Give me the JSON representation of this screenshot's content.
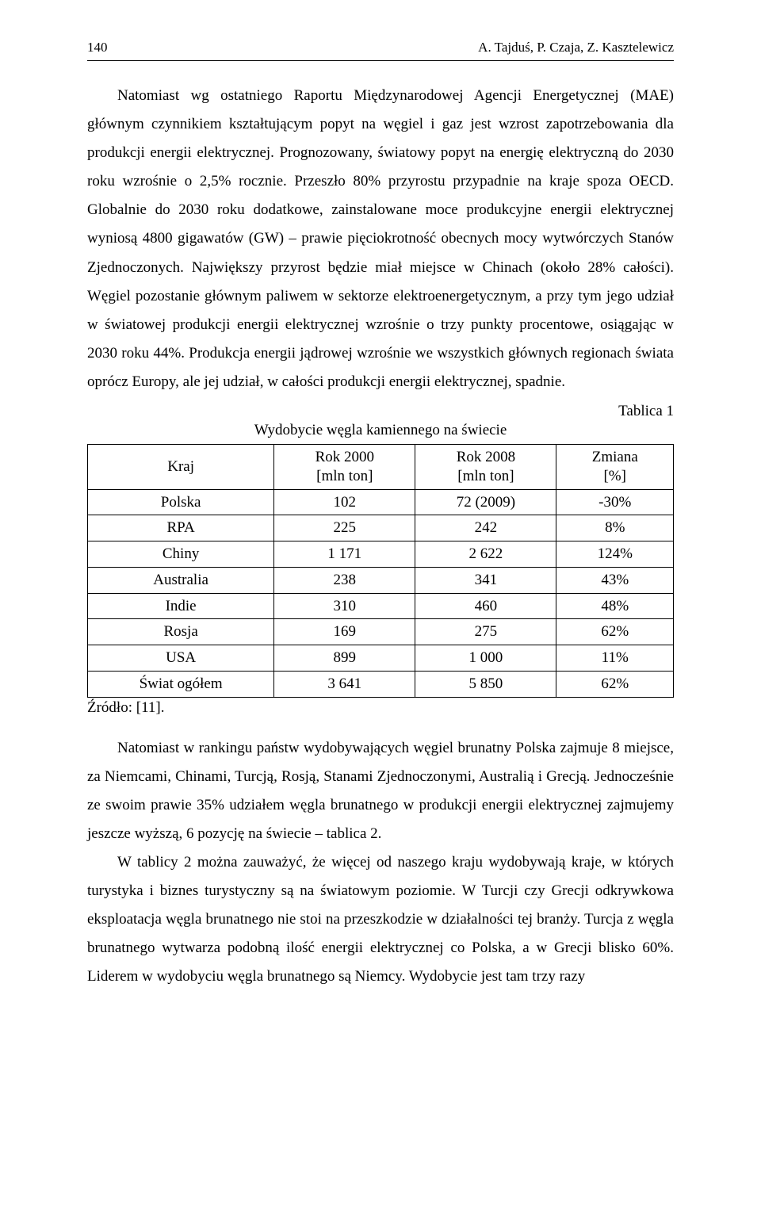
{
  "header": {
    "page_number": "140",
    "authors": "A. Tajduś, P. Czaja, Z. Kasztelewicz"
  },
  "paragraphs": {
    "p1": "Natomiast wg ostatniego Raportu Międzynarodowej Agencji Energetycznej (MAE) głównym czynnikiem kształtującym popyt na węgiel i gaz jest wzrost zapotrzebowania dla produkcji energii elektrycznej. Prognozowany, światowy popyt na energię elektryczną do 2030 roku wzrośnie o 2,5% rocznie. Przeszło 80% przyrostu przypadnie na kraje spoza OECD. Globalnie do 2030 roku dodatkowe, zainstalowane moce produkcyjne energii elektrycznej wyniosą 4800 gigawatów (GW) – prawie pięciokrotność obecnych mocy wytwórczych Stanów Zjednoczonych. Największy przyrost będzie miał miejsce w Chinach (około 28% całości). Węgiel pozostanie głównym paliwem w sektorze elektroenergetycznym, a przy tym jego udział w światowej produkcji energii elektrycznej wzrośnie o trzy punkty procentowe, osiągając w 2030 roku 44%. Produkcja energii jądrowej wzrośnie we wszystkich głównych regionach świata oprócz Europy, ale jej udział, w całości produkcji energii elektrycznej, spadnie.",
    "p2": "Natomiast w rankingu państw wydobywających węgiel brunatny Polska zajmuje 8 miejsce, za Niemcami, Chinami, Turcją, Rosją, Stanami Zjednoczonymi, Australią i Grecją. Jednocześnie ze swoim prawie 35% udziałem węgla brunatnego w produkcji energii elektrycznej zajmujemy jeszcze wyższą, 6 pozycję na świecie – tablica 2.",
    "p3": "W tablicy 2 można zauważyć, że więcej od naszego kraju wydobywają kraje, w których turystyka i biznes turystyczny są na światowym poziomie. W Turcji czy Grecji odkrywkowa eksploatacja węgla brunatnego nie stoi na przeszkodzie w działalności tej branży. Turcja z węgla brunatnego wytwarza podobną ilość energii elektrycznej co Polska, a w Grecji blisko 60%. Liderem w wydobyciu węgla brunatnego są Niemcy. Wydobycie jest tam trzy razy"
  },
  "table1": {
    "label": "Tablica 1",
    "title": "Wydobycie węgla kamiennego na świecie",
    "columns": {
      "c0": "Kraj",
      "c1_line1": "Rok 2000",
      "c1_line2": "[mln ton]",
      "c2_line1": "Rok 2008",
      "c2_line2": "[mln ton]",
      "c3_line1": "Zmiana",
      "c3_line2": "[%]"
    },
    "rows": [
      {
        "country": "Polska",
        "y2000": "102",
        "y2008": "72 (2009)",
        "change": "-30%"
      },
      {
        "country": "RPA",
        "y2000": "225",
        "y2008": "242",
        "change": "8%"
      },
      {
        "country": "Chiny",
        "y2000": "1 171",
        "y2008": "2 622",
        "change": "124%"
      },
      {
        "country": "Australia",
        "y2000": "238",
        "y2008": "341",
        "change": "43%"
      },
      {
        "country": "Indie",
        "y2000": "310",
        "y2008": "460",
        "change": "48%"
      },
      {
        "country": "Rosja",
        "y2000": "169",
        "y2008": "275",
        "change": "62%"
      },
      {
        "country": "USA",
        "y2000": "899",
        "y2008": "1 000",
        "change": "11%"
      },
      {
        "country": "Świat ogółem",
        "y2000": "3 641",
        "y2008": "5 850",
        "change": "62%"
      }
    ],
    "source": "Źródło: [11]."
  }
}
